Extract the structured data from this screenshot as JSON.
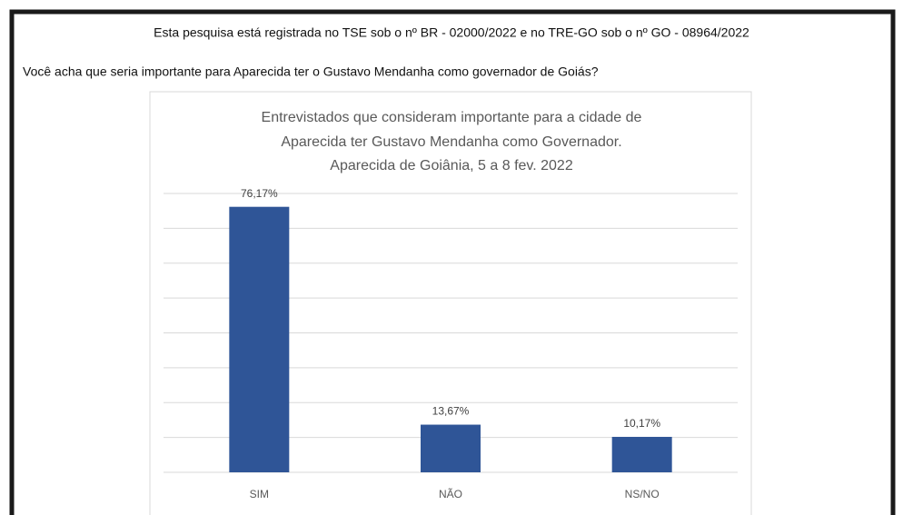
{
  "header": {
    "registration": "Esta pesquisa está registrada no TSE sob o nº BR - 02000/2022 e no TRE-GO sob o nº GO - 08964/2022",
    "question": "Você acha que seria importante para Aparecida ter o Gustavo Mendanha como governador de Goiás?"
  },
  "chart_data": {
    "type": "bar",
    "title": [
      "Entrevistados que consideram importante para a cidade de",
      "Aparecida ter Gustavo Mendanha  como Governador.",
      "Aparecida de Goiânia, 5 a 8 fev. 2022"
    ],
    "categories": [
      "SIM",
      "NÃO",
      "NS/NO"
    ],
    "values": [
      76.17,
      13.67,
      10.17
    ],
    "value_labels": [
      "76,17%",
      "13,67%",
      "10,17%"
    ],
    "color": "#2f5597",
    "ylim": [
      0,
      80
    ],
    "yticks": [
      0,
      10,
      20,
      30,
      40,
      50,
      60,
      70,
      80
    ],
    "grid": true
  }
}
